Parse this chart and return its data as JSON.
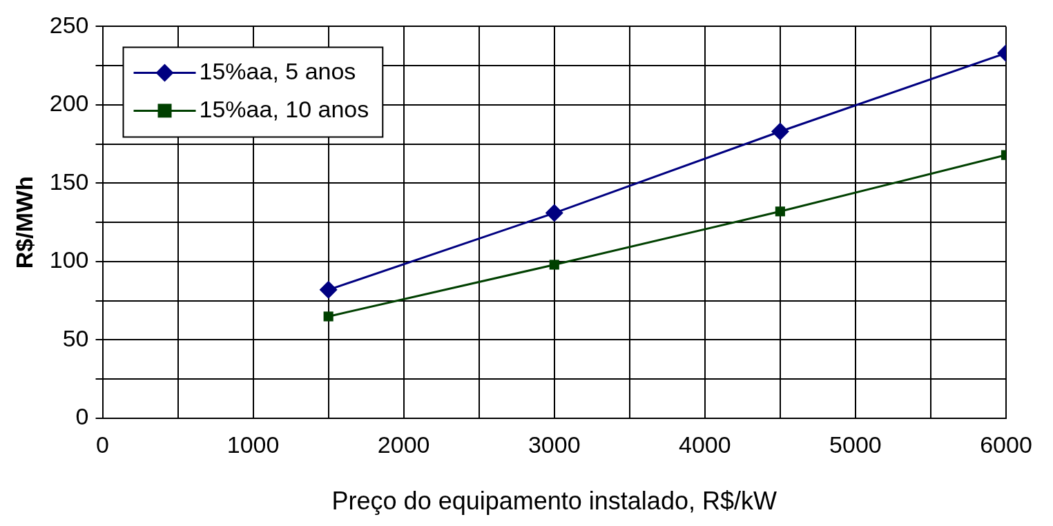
{
  "chart_data": {
    "type": "line",
    "xlabel": "Preço do equipamento instalado, R$/kW",
    "ylabel": "R$/MWh",
    "x": [
      1500,
      3000,
      4500,
      6000
    ],
    "series": [
      {
        "name": "15%aa, 5 anos",
        "color": "#000080",
        "marker": "diamond",
        "values": [
          82,
          131,
          183,
          233
        ]
      },
      {
        "name": "15%aa, 10 anos",
        "color": "#004000",
        "marker": "square",
        "values": [
          65,
          98,
          132,
          168
        ]
      }
    ],
    "xlim": [
      0,
      6000
    ],
    "xticks": [
      0,
      {
        "value": 500,
        "label": null
      },
      1000,
      {
        "value": 1500,
        "label": null
      },
      2000,
      {
        "value": 2500,
        "label": null
      },
      3000,
      {
        "value": 3500,
        "label": null
      },
      4000,
      {
        "value": 4500,
        "label": null
      },
      5000,
      {
        "value": 5500,
        "label": null
      },
      6000
    ],
    "ylim": [
      0,
      250
    ],
    "yticks": [
      0,
      {
        "value": 25,
        "label": null
      },
      50,
      {
        "value": 75,
        "label": null
      },
      100,
      {
        "value": 125,
        "label": null
      },
      150,
      {
        "value": 175,
        "label": null
      },
      200,
      {
        "value": 225,
        "label": null
      },
      250
    ],
    "grid": true,
    "legend": "top left",
    "line_style": "solid"
  }
}
